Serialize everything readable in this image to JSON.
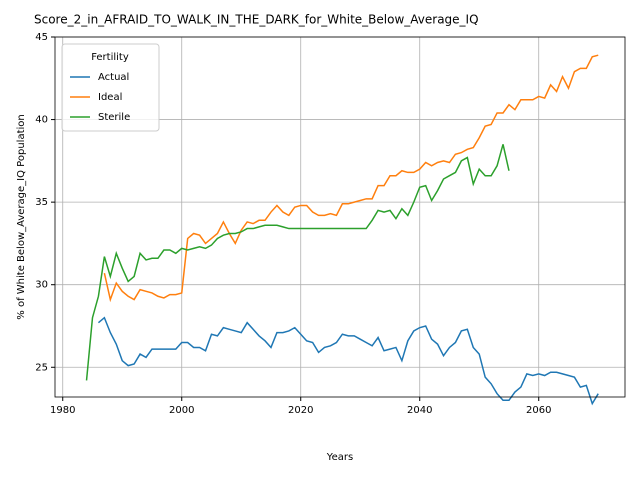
{
  "chart_data": {
    "type": "line",
    "title": "Score_2_in_AFRAID_TO_WALK_IN_THE_DARK_for_White_Below_Average_IQ",
    "xlabel": "Years",
    "ylabel": "% of White Below_Average_IQ Population",
    "legend_title": "Fertility",
    "legend": "upper left",
    "grid": true,
    "xlim": [
      1978.7,
      2074.5
    ],
    "ylim": [
      23.2,
      45
    ],
    "xticks": [
      1980,
      2000,
      2020,
      2040,
      2060
    ],
    "yticks": [
      25,
      30,
      35,
      40,
      45
    ],
    "x": [
      1984,
      1985,
      1986,
      1987,
      1988,
      1989,
      1990,
      1991,
      1992,
      1993,
      1994,
      1995,
      1996,
      1997,
      1998,
      1999,
      2000,
      2001,
      2002,
      2003,
      2004,
      2005,
      2006,
      2007,
      2008,
      2009,
      2010,
      2011,
      2012,
      2013,
      2014,
      2015,
      2016,
      2017,
      2018,
      2019,
      2020,
      2021,
      2022,
      2023,
      2024,
      2025,
      2026,
      2027,
      2028,
      2029,
      2030,
      2031,
      2032,
      2033,
      2034,
      2035,
      2036,
      2037,
      2038,
      2039,
      2040,
      2041,
      2042,
      2043,
      2044,
      2045,
      2046,
      2047,
      2048,
      2049,
      2050,
      2051,
      2052,
      2053,
      2054,
      2055,
      2056,
      2057,
      2058,
      2059,
      2060,
      2061,
      2062,
      2063,
      2064,
      2065,
      2066,
      2067,
      2068,
      2069,
      2070
    ],
    "series": [
      {
        "name": "Actual",
        "color": "#1f77b4",
        "values": [
          null,
          null,
          27.7,
          28.0,
          27.1,
          26.4,
          25.4,
          25.1,
          25.2,
          25.8,
          25.6,
          26.1,
          26.1,
          26.1,
          26.1,
          26.1,
          26.5,
          26.5,
          26.2,
          26.2,
          26.0,
          27.0,
          26.9,
          27.4,
          27.3,
          27.2,
          27.1,
          27.7,
          27.3,
          26.9,
          26.6,
          26.2,
          27.1,
          27.1,
          27.2,
          27.4,
          27.0,
          26.6,
          26.5,
          25.9,
          26.2,
          26.3,
          26.5,
          27.0,
          26.9,
          26.9,
          26.7,
          26.5,
          26.3,
          26.8,
          26.0,
          26.1,
          26.2,
          25.4,
          26.6,
          27.2,
          27.4,
          27.5,
          26.7,
          26.4,
          25.7,
          26.2,
          26.5,
          27.2,
          27.3,
          26.2,
          25.8,
          24.4,
          24.0,
          23.4,
          23.0,
          23.0,
          23.5,
          23.8,
          24.6,
          24.5,
          24.6,
          24.5,
          24.7,
          24.7,
          24.6,
          24.5,
          24.4,
          23.8,
          23.9,
          22.8,
          23.4
        ]
      },
      {
        "name": "Ideal",
        "color": "#ff7f0e",
        "values": [
          null,
          null,
          null,
          30.7,
          29.1,
          30.1,
          29.6,
          29.3,
          29.1,
          29.7,
          29.6,
          29.5,
          29.3,
          29.2,
          29.4,
          29.4,
          29.5,
          32.8,
          33.1,
          33.0,
          32.5,
          32.8,
          33.1,
          33.8,
          33.1,
          32.5,
          33.3,
          33.8,
          33.7,
          33.9,
          33.9,
          34.4,
          34.8,
          34.4,
          34.2,
          34.7,
          34.8,
          34.8,
          34.4,
          34.2,
          34.2,
          34.3,
          34.2,
          34.9,
          34.9,
          35.0,
          35.1,
          35.2,
          35.2,
          36.0,
          36.0,
          36.6,
          36.6,
          36.9,
          36.8,
          36.8,
          37.0,
          37.4,
          37.2,
          37.4,
          37.5,
          37.4,
          37.9,
          38.0,
          38.2,
          38.3,
          38.9,
          39.6,
          39.7,
          40.4,
          40.4,
          40.9,
          40.6,
          41.2,
          41.2,
          41.2,
          41.4,
          41.3,
          42.1,
          41.7,
          42.6,
          41.9,
          42.9,
          43.1,
          43.1,
          43.8,
          43.9
        ]
      },
      {
        "name": "Sterile",
        "color": "#2ca02c",
        "values": [
          24.2,
          28.0,
          29.3,
          31.7,
          30.5,
          31.9,
          31.0,
          30.2,
          30.5,
          31.9,
          31.5,
          31.6,
          31.6,
          32.1,
          32.1,
          31.9,
          32.2,
          32.1,
          32.2,
          32.3,
          32.2,
          32.4,
          32.8,
          33.0,
          33.1,
          33.1,
          33.2,
          33.4,
          33.4,
          33.5,
          33.6,
          33.6,
          33.6,
          33.5,
          33.4,
          33.4,
          33.4,
          33.4,
          33.4,
          33.4,
          33.4,
          33.4,
          33.4,
          33.4,
          33.4,
          33.4,
          33.4,
          33.4,
          33.9,
          34.5,
          34.4,
          34.5,
          34.0,
          34.6,
          34.2,
          35.0,
          35.9,
          36.0,
          35.1,
          35.7,
          36.4,
          36.6,
          36.8,
          37.5,
          37.7,
          36.1,
          37.0,
          36.6,
          36.6,
          37.2,
          38.5,
          36.9,
          null,
          null,
          null,
          null,
          null,
          null,
          null,
          null,
          null,
          null,
          null,
          null,
          null,
          null,
          null
        ]
      }
    ]
  }
}
